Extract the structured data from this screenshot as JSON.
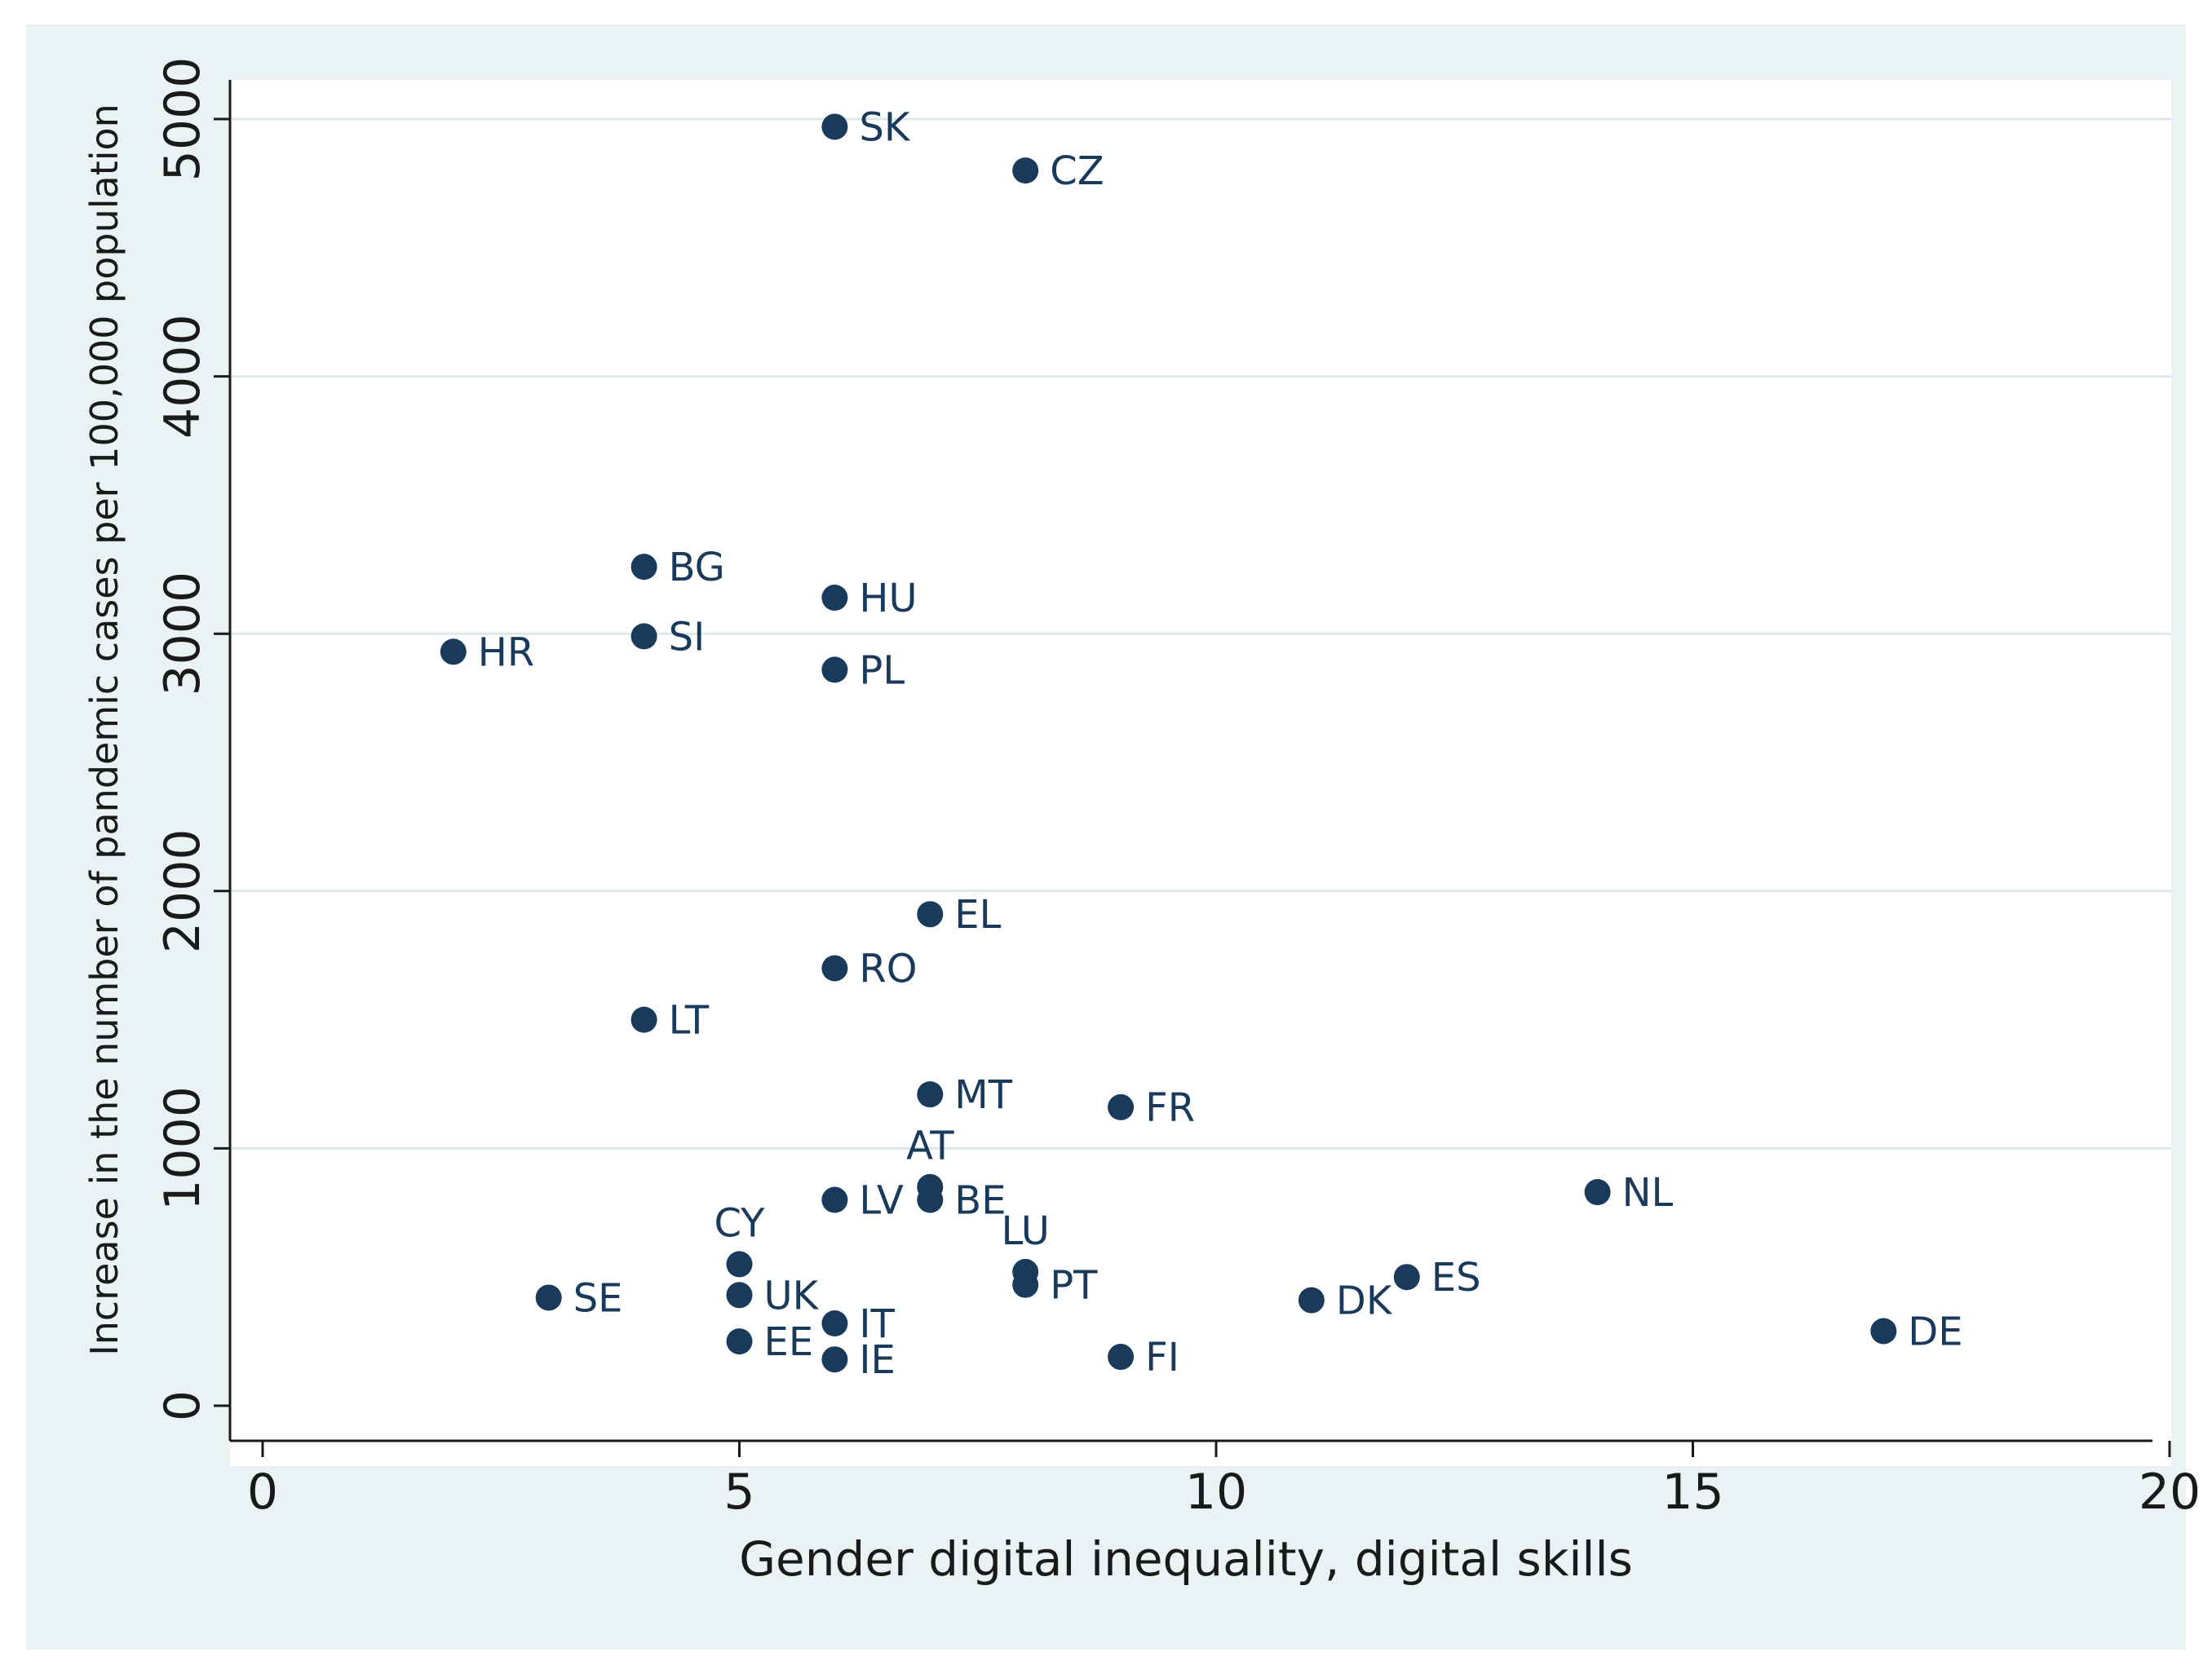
{
  "chart_data": {
    "type": "scatter",
    "title": "",
    "xlabel": "Gender digital inequality, digital skills",
    "ylabel": "Increase in the number of pandemic cases per 100,000 population",
    "xlim": [
      0,
      20
    ],
    "ylim": [
      0,
      5000
    ],
    "xticks": [
      0,
      5,
      10,
      15,
      20
    ],
    "yticks": [
      0,
      1000,
      2000,
      3000,
      4000,
      5000
    ],
    "grid": "horizontal",
    "point_color": "#1a3a5c",
    "points": [
      {
        "label": "SK",
        "x": 6,
        "y": 4970,
        "pos": "right"
      },
      {
        "label": "CZ",
        "x": 8,
        "y": 4800,
        "pos": "right"
      },
      {
        "label": "BG",
        "x": 4,
        "y": 3260,
        "pos": "right"
      },
      {
        "label": "HU",
        "x": 6,
        "y": 3140,
        "pos": "right"
      },
      {
        "label": "SI",
        "x": 4,
        "y": 2990,
        "pos": "right"
      },
      {
        "label": "HR",
        "x": 2,
        "y": 2930,
        "pos": "right"
      },
      {
        "label": "PL",
        "x": 6,
        "y": 2860,
        "pos": "right"
      },
      {
        "label": "EL",
        "x": 7,
        "y": 1910,
        "pos": "right"
      },
      {
        "label": "RO",
        "x": 6,
        "y": 1700,
        "pos": "right"
      },
      {
        "label": "LT",
        "x": 4,
        "y": 1500,
        "pos": "right"
      },
      {
        "label": "MT",
        "x": 7,
        "y": 1210,
        "pos": "right"
      },
      {
        "label": "FR",
        "x": 9,
        "y": 1160,
        "pos": "right"
      },
      {
        "label": "AT",
        "x": 7,
        "y": 850,
        "pos": "above"
      },
      {
        "label": "NL",
        "x": 14,
        "y": 830,
        "pos": "right"
      },
      {
        "label": "BE",
        "x": 7,
        "y": 800,
        "pos": "right"
      },
      {
        "label": "LV",
        "x": 6,
        "y": 800,
        "pos": "right"
      },
      {
        "label": "CY",
        "x": 5,
        "y": 550,
        "pos": "above"
      },
      {
        "label": "LU",
        "x": 8,
        "y": 520,
        "pos": "above"
      },
      {
        "label": "ES",
        "x": 12,
        "y": 500,
        "pos": "right"
      },
      {
        "label": "PT",
        "x": 8,
        "y": 470,
        "pos": "right"
      },
      {
        "label": "UK",
        "x": 5,
        "y": 430,
        "pos": "right"
      },
      {
        "label": "SE",
        "x": 3,
        "y": 420,
        "pos": "right"
      },
      {
        "label": "DK",
        "x": 11,
        "y": 410,
        "pos": "right"
      },
      {
        "label": "IT",
        "x": 6,
        "y": 320,
        "pos": "right"
      },
      {
        "label": "DE",
        "x": 17,
        "y": 290,
        "pos": "right"
      },
      {
        "label": "EE",
        "x": 5,
        "y": 250,
        "pos": "right"
      },
      {
        "label": "FI",
        "x": 9,
        "y": 190,
        "pos": "right"
      },
      {
        "label": "IE",
        "x": 6,
        "y": 180,
        "pos": "right"
      }
    ]
  }
}
